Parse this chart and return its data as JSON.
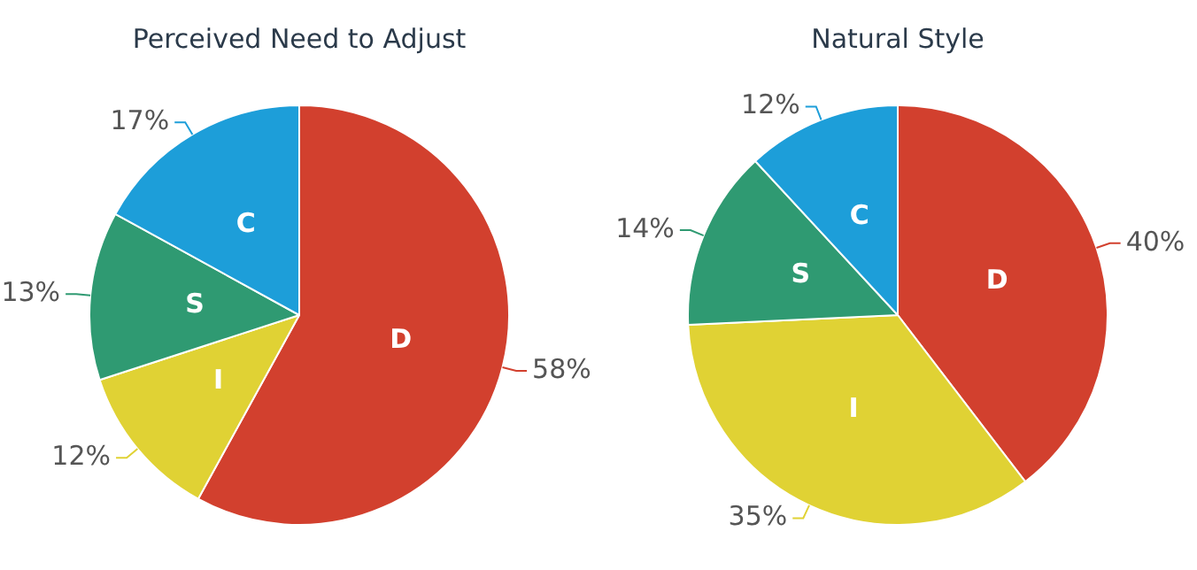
{
  "chart_data": [
    {
      "type": "pie",
      "title": "Perceived Need to Adjust",
      "categories": [
        "D",
        "I",
        "S",
        "C"
      ],
      "values": [
        58,
        12,
        13,
        17
      ],
      "colors": [
        "#d2402e",
        "#e0d234",
        "#2f9a72",
        "#1d9ed9"
      ],
      "value_labels": [
        "58%",
        "12%",
        "13%",
        "17%"
      ],
      "legend": false
    },
    {
      "type": "pie",
      "title": "Natural Style",
      "categories": [
        "D",
        "I",
        "S",
        "C"
      ],
      "values": [
        40,
        35,
        14,
        12
      ],
      "colors": [
        "#d2402e",
        "#e0d234",
        "#2f9a72",
        "#1d9ed9"
      ],
      "value_labels": [
        "40%",
        "35%",
        "14%",
        "12%"
      ],
      "legend": false
    }
  ]
}
